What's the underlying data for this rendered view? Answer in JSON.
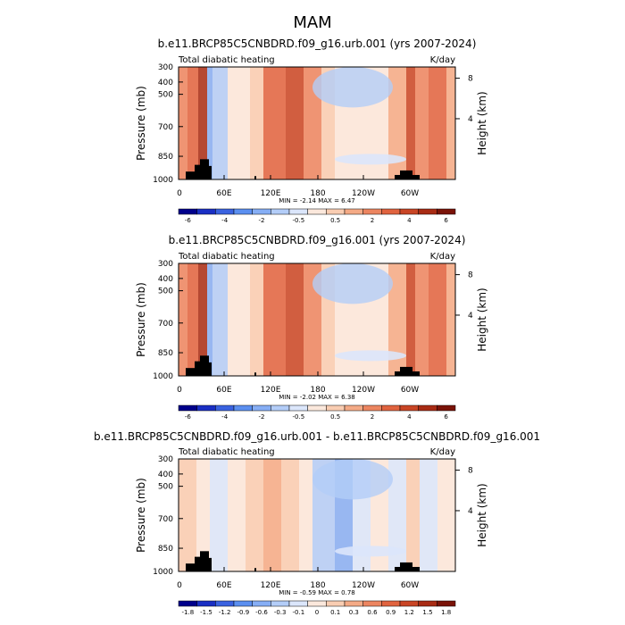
{
  "page_title": "MAM",
  "colors": {
    "diabatic": [
      "#00008b",
      "#1a2fc4",
      "#3a62e0",
      "#5b8ff0",
      "#86aef5",
      "#b3cdf8",
      "#dbe6fb",
      "#fbe8dc",
      "#f9cdb2",
      "#f4aa86",
      "#ec8560",
      "#e0633f",
      "#c94525",
      "#a82b14",
      "#7a1308"
    ],
    "land": "#000000"
  },
  "chart_data": [
    {
      "type": "heatmap",
      "title": "b.e11.BRCP85C5CNBDRD.f09_g16.urb.001 (yrs 2007-2024)",
      "left_label": "Total diabatic heating",
      "right_label": "K/day",
      "ylabel": "Pressure (mb)",
      "y2label": "Height (km)",
      "yticks": [
        "300",
        "400",
        "500",
        "700",
        "850",
        "1000"
      ],
      "y2ticks": [
        "8",
        "4"
      ],
      "xticks": [
        "0",
        "60E",
        "120E",
        "180",
        "120W",
        "60W"
      ],
      "minmax": "MIN =  -2.14  MAX =   6.47",
      "colorbar_levels": [
        "-6",
        "",
        "-4",
        "",
        "-2",
        "",
        "-0.5",
        "",
        "0.5",
        "",
        "2",
        "",
        "4",
        "",
        "6"
      ],
      "color_key": "diabatic"
    },
    {
      "type": "heatmap",
      "title": "b.e11.BRCP85C5CNBDRD.f09_g16.001 (yrs 2007-2024)",
      "left_label": "Total diabatic heating",
      "right_label": "K/day",
      "ylabel": "Pressure (mb)",
      "y2label": "Height (km)",
      "yticks": [
        "300",
        "400",
        "500",
        "700",
        "850",
        "1000"
      ],
      "y2ticks": [
        "8",
        "4"
      ],
      "xticks": [
        "0",
        "60E",
        "120E",
        "180",
        "120W",
        "60W"
      ],
      "minmax": "MIN =  -2.02  MAX =   6.38",
      "colorbar_levels": [
        "-6",
        "",
        "-4",
        "",
        "-2",
        "",
        "-0.5",
        "",
        "0.5",
        "",
        "2",
        "",
        "4",
        "",
        "6"
      ],
      "color_key": "diabatic"
    },
    {
      "type": "heatmap",
      "title": "b.e11.BRCP85C5CNBDRD.f09_g16.urb.001 - b.e11.BRCP85C5CNBDRD.f09_g16.001",
      "left_label": "Total diabatic heating",
      "right_label": "K/day",
      "ylabel": "Pressure (mb)",
      "y2label": "Height (km)",
      "yticks": [
        "300",
        "400",
        "500",
        "700",
        "850",
        "1000"
      ],
      "y2ticks": [
        "8",
        "4"
      ],
      "xticks": [
        "0",
        "60E",
        "120E",
        "180",
        "120W",
        "60W"
      ],
      "minmax": "MIN =  -0.59  MAX =   0.78",
      "colorbar_levels": [
        "-1.8",
        "-1.5",
        "-1.2",
        "-0.9",
        "-0.6",
        "-0.3",
        "-0.1",
        "0",
        "0.1",
        "0.3",
        "0.6",
        "0.9",
        "1.2",
        "1.5",
        "1.8"
      ],
      "color_key": "diabatic"
    }
  ]
}
